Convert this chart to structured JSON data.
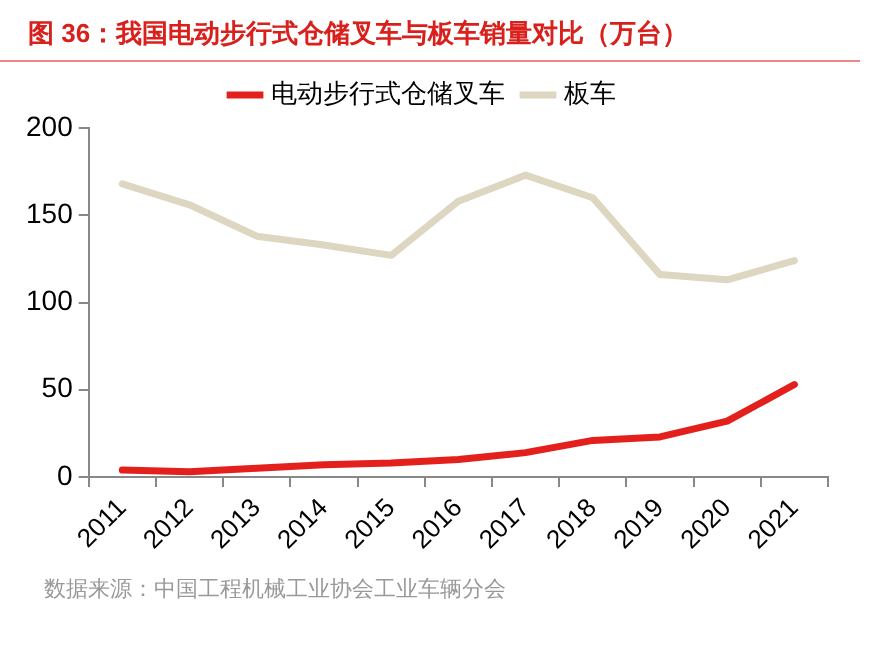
{
  "chart_data": {
    "type": "line",
    "title": "图 36：我国电动步行式仓储叉车与板车销量对比（万台）",
    "categories": [
      "2011",
      "2012",
      "2013",
      "2014",
      "2015",
      "2016",
      "2017",
      "2018",
      "2019",
      "2020",
      "2021"
    ],
    "series": [
      {
        "name": "电动步行式仓储叉车",
        "color": "#e3201b",
        "values": [
          4,
          3,
          5,
          7,
          8,
          10,
          14,
          21,
          23,
          32,
          53
        ]
      },
      {
        "name": "板车",
        "color": "#ddd6c1",
        "values": [
          168,
          156,
          138,
          133,
          127,
          158,
          173,
          160,
          116,
          113,
          124
        ]
      }
    ],
    "ylim": [
      0,
      200
    ],
    "yticks": [
      0,
      50,
      100,
      150,
      200
    ],
    "grid": false,
    "legend": "top",
    "marker": "none",
    "line_style": "solid",
    "annotations": [
      "数据来源：中国工程机械工业协会工业车辆分会"
    ]
  }
}
